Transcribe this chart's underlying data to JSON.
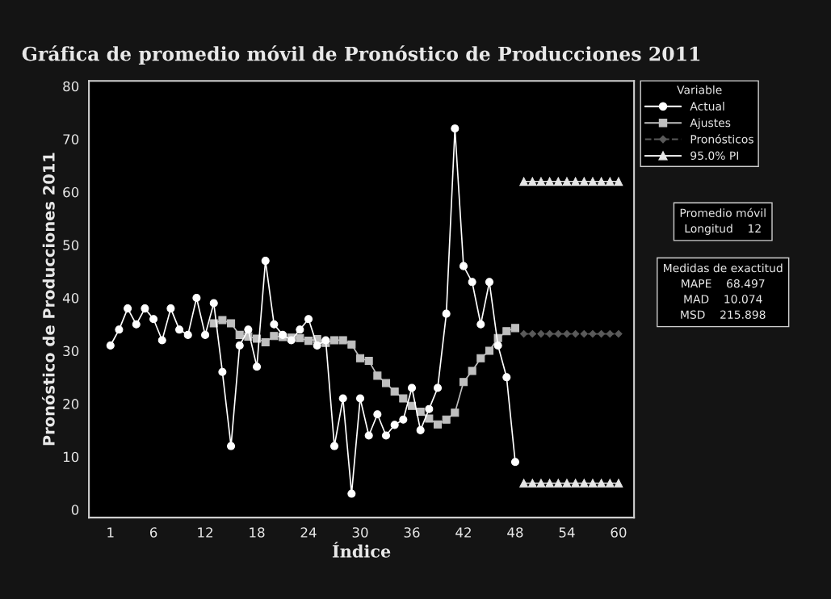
{
  "chart_data": {
    "type": "line",
    "title": "Gráfica de promedio móvil de Pronóstico de Producciones 2011",
    "xlabel": "Índice",
    "ylabel": "Pronóstico de Producciones 2011",
    "legend_title": "Variable",
    "legend": "right",
    "grid": false,
    "xlim": [
      -1.5,
      61.8
    ],
    "ylim": [
      -1.5,
      81
    ],
    "xticks": [
      1,
      6,
      12,
      18,
      24,
      30,
      36,
      42,
      48,
      54,
      60
    ],
    "yticks": [
      0,
      10,
      20,
      30,
      40,
      50,
      60,
      70,
      80
    ],
    "series": [
      {
        "name": "Actual",
        "color": "#ffffff",
        "marker": "circle",
        "line_style": "solid",
        "x": [
          1,
          2,
          3,
          4,
          5,
          6,
          7,
          8,
          9,
          10,
          11,
          12,
          13,
          14,
          15,
          16,
          17,
          18,
          19,
          20,
          21,
          22,
          23,
          24,
          25,
          26,
          27,
          28,
          29,
          30,
          31,
          32,
          33,
          34,
          35,
          36,
          37,
          38,
          39,
          40,
          41,
          42,
          43,
          44,
          45,
          46,
          47,
          48
        ],
        "values": [
          31,
          34,
          38,
          35,
          38,
          36,
          32,
          38,
          34,
          33,
          40,
          33,
          39,
          26,
          12,
          31,
          34,
          27,
          47,
          35,
          33,
          32,
          34,
          36,
          31,
          32,
          12,
          21,
          3,
          21,
          14,
          18,
          14,
          16,
          17,
          23,
          15,
          19,
          23,
          37,
          72,
          46,
          43,
          35,
          43,
          31,
          25,
          9
        ]
      },
      {
        "name": "Ajustes",
        "color": "#bfbfbf",
        "marker": "square",
        "line_style": "solid",
        "x": [
          13,
          14,
          15,
          16,
          17,
          18,
          19,
          20,
          21,
          22,
          23,
          24,
          25,
          26,
          27,
          28,
          29,
          30,
          31,
          32,
          33,
          34,
          35,
          36,
          37,
          38,
          39,
          40,
          41,
          42,
          43,
          44,
          45,
          46,
          47,
          48
        ],
        "values": [
          35.2,
          35.8,
          35.2,
          33.0,
          32.7,
          32.3,
          31.6,
          32.8,
          32.6,
          32.5,
          32.4,
          31.9,
          32.2,
          31.5,
          32.0,
          32.0,
          31.2,
          28.6,
          28.1,
          25.3,
          23.9,
          22.3,
          21.0,
          19.6,
          18.5,
          17.2,
          16.1,
          17.0,
          18.3,
          24.1,
          26.2,
          28.6,
          30.0,
          32.4,
          33.7,
          34.3
        ]
      },
      {
        "name": "Pronósticos",
        "color": "#5a5a5a",
        "marker": "diamond",
        "line_style": "dashed",
        "x": [
          49,
          50,
          51,
          52,
          53,
          54,
          55,
          56,
          57,
          58,
          59,
          60
        ],
        "values": [
          33.2,
          33.2,
          33.2,
          33.2,
          33.2,
          33.2,
          33.2,
          33.2,
          33.2,
          33.2,
          33.2,
          33.2
        ]
      },
      {
        "name": "95.0% PI",
        "color": "#e6e6e6",
        "marker": "triangle",
        "line_style": "solid",
        "x": [
          49,
          50,
          51,
          52,
          53,
          54,
          55,
          56,
          57,
          58,
          59,
          60
        ],
        "values": [
          62,
          62,
          62,
          62,
          62,
          62,
          62,
          62,
          62,
          62,
          62,
          62
        ]
      },
      {
        "color": "#e6e6e6",
        "marker": "triangle",
        "line_style": "solid",
        "x": [
          49,
          50,
          51,
          52,
          53,
          54,
          55,
          56,
          57,
          58,
          59,
          60
        ],
        "values": [
          5,
          5,
          5,
          5,
          5,
          5,
          5,
          5,
          5,
          5,
          5,
          5
        ]
      }
    ],
    "annotations": [
      "Promedio móvil\nLongitud    12",
      "Medidas de exactitud\nMAPE    68.497\nMAD    10.074\nMSD    215.898"
    ]
  }
}
